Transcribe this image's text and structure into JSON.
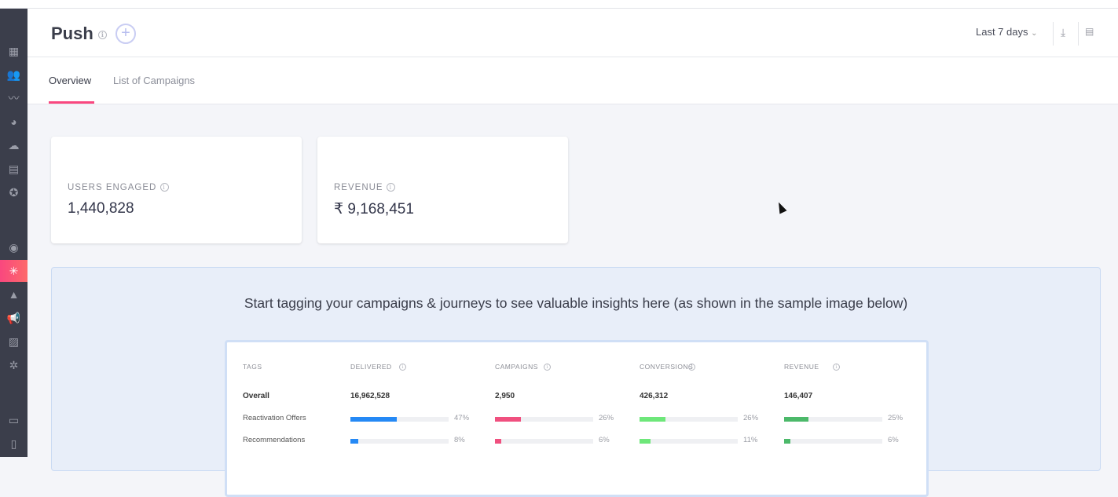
{
  "header": {
    "title": "Push",
    "date_range": "Last 7 days"
  },
  "tabs": [
    {
      "label": "Overview"
    },
    {
      "label": "List of Campaigns"
    }
  ],
  "cards": [
    {
      "label": "USERS ENGAGED",
      "value": "1,440,828"
    },
    {
      "label": "REVENUE",
      "value": "₹ 9,168,451"
    }
  ],
  "banner": {
    "heading": "Start tagging your campaigns & journeys to see valuable insights here (as shown in the sample image below)"
  },
  "sample": {
    "headers": [
      "TAGS",
      "DELIVERED",
      "CAMPAIGNS",
      "CONVERSIONS",
      "REVENUE"
    ],
    "overall": {
      "label": "Overall",
      "values": [
        "16,962,528",
        "2,950",
        "426,312",
        "146,407"
      ]
    },
    "rows": [
      {
        "label": "Reactivation Offers",
        "pcts": [
          "47%",
          "26%",
          "26%",
          "25%"
        ],
        "fills": [
          0.47,
          0.26,
          0.26,
          0.25
        ]
      },
      {
        "label": "Recommendations",
        "pcts": [
          "8%",
          "6%",
          "11%",
          "6%"
        ],
        "fills": [
          0.08,
          0.06,
          0.11,
          0.06
        ]
      }
    ],
    "colors": [
      "#2589f5",
      "#f0507f",
      "#6ee77a",
      "#4cb96a"
    ]
  }
}
